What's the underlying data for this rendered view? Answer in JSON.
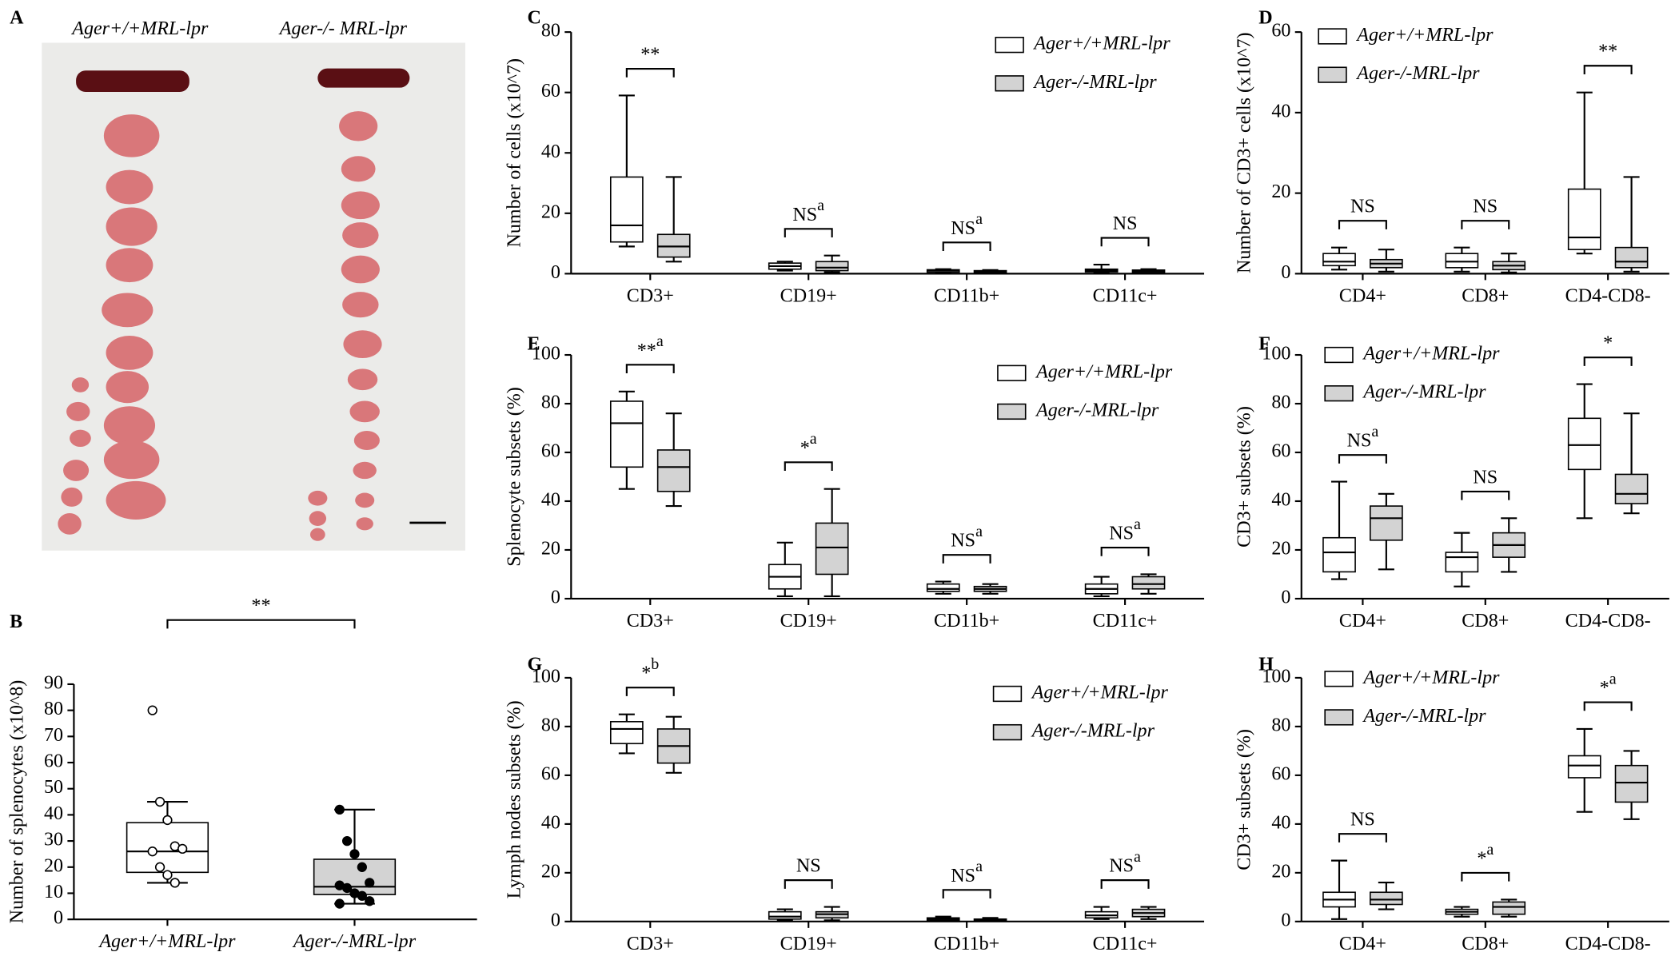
{
  "panel_a": {
    "label": "A",
    "left_title": "Ager+/+MRL-lpr",
    "right_title": "Ager-/- MRL-lpr"
  },
  "chart_data": [
    {
      "type": "box",
      "panel": "B",
      "ylabel": "Number of splenocytes (x10^8)",
      "ylim": [
        0,
        90
      ],
      "yticks": [
        0,
        10,
        20,
        30,
        40,
        50,
        60,
        70,
        80,
        90
      ],
      "categories": [
        "Ager+/+MRL-lpr",
        "Ager-/-MRL-lpr"
      ],
      "colors": [
        "#ffffff",
        "#d3d3d3"
      ],
      "boxes": [
        {
          "min": 14,
          "q1": 18,
          "median": 26,
          "q3": 37,
          "max": 45
        },
        {
          "min": 6,
          "q1": 9.5,
          "median": 12.5,
          "q3": 23,
          "max": 42
        }
      ],
      "points": [
        [
          80,
          45,
          38,
          28,
          27,
          26,
          20,
          17,
          14
        ],
        [
          42,
          30,
          25,
          20,
          14,
          13,
          12,
          10,
          9,
          7,
          6
        ]
      ],
      "significance": [
        {
          "text": "**"
        }
      ]
    },
    {
      "type": "box",
      "panel": "C",
      "ylabel": "Number of cells (x10^7)",
      "ylim": [
        0,
        80
      ],
      "yticks": [
        0,
        20,
        40,
        60,
        80
      ],
      "categories": [
        "CD3+",
        "CD19+",
        "CD11b+",
        "CD11c+"
      ],
      "series": [
        {
          "name": "Ager+/+MRL-lpr",
          "color": "#ffffff",
          "boxes": [
            {
              "min": 9,
              "q1": 10.5,
              "median": 16,
              "q3": 32,
              "max": 59
            },
            {
              "min": 1,
              "q1": 1.5,
              "median": 2.5,
              "q3": 3.5,
              "max": 4
            },
            {
              "min": 0.2,
              "q1": 0.5,
              "median": 1,
              "q3": 1.3,
              "max": 1.5
            },
            {
              "min": 0.3,
              "q1": 0.6,
              "median": 1,
              "q3": 1.5,
              "max": 3
            }
          ]
        },
        {
          "name": "Ager-/-MRL-lpr",
          "color": "#d3d3d3",
          "boxes": [
            {
              "min": 4,
              "q1": 5.5,
              "median": 9,
              "q3": 13,
              "max": 32
            },
            {
              "min": 0.5,
              "q1": 1,
              "median": 2,
              "q3": 4,
              "max": 6
            },
            {
              "min": 0.1,
              "q1": 0.3,
              "median": 0.6,
              "q3": 1,
              "max": 1.2
            },
            {
              "min": 0.2,
              "q1": 0.4,
              "median": 0.8,
              "q3": 1.2,
              "max": 1.5
            }
          ]
        }
      ],
      "significance": [
        {
          "text": "**"
        },
        {
          "text": "NS",
          "sup": "a"
        },
        {
          "text": "NS",
          "sup": "a"
        },
        {
          "text": "NS"
        }
      ]
    },
    {
      "type": "box",
      "panel": "D",
      "ylabel": "Number of CD3+ cells (x10^7)",
      "ylim": [
        0,
        60
      ],
      "yticks": [
        0,
        20,
        40,
        60
      ],
      "categories": [
        "CD4+",
        "CD8+",
        "CD4-CD8-"
      ],
      "series": [
        {
          "name": "Ager+/+MRL-lpr",
          "color": "#ffffff",
          "boxes": [
            {
              "min": 1,
              "q1": 2,
              "median": 3,
              "q3": 5,
              "max": 6.5
            },
            {
              "min": 0.5,
              "q1": 1.5,
              "median": 3,
              "q3": 5,
              "max": 6.5
            },
            {
              "min": 5,
              "q1": 6,
              "median": 9,
              "q3": 21,
              "max": 45
            }
          ]
        },
        {
          "name": "Ager-/-MRL-lpr",
          "color": "#d3d3d3",
          "boxes": [
            {
              "min": 0.5,
              "q1": 1.5,
              "median": 2.5,
              "q3": 3.5,
              "max": 6
            },
            {
              "min": 0.3,
              "q1": 1,
              "median": 2,
              "q3": 3,
              "max": 5
            },
            {
              "min": 0.5,
              "q1": 1.5,
              "median": 3,
              "q3": 6.5,
              "max": 24
            }
          ]
        }
      ],
      "significance": [
        {
          "text": "NS"
        },
        {
          "text": "NS"
        },
        {
          "text": "**"
        }
      ]
    },
    {
      "type": "box",
      "panel": "E",
      "ylabel": "Splenocyte subsets (%)",
      "ylim": [
        0,
        100
      ],
      "yticks": [
        0,
        20,
        40,
        60,
        80,
        100
      ],
      "categories": [
        "CD3+",
        "CD19+",
        "CD11b+",
        "CD11c+"
      ],
      "series": [
        {
          "name": "Ager+/+MRL-lpr",
          "color": "#ffffff",
          "boxes": [
            {
              "min": 45,
              "q1": 54,
              "median": 72,
              "q3": 81,
              "max": 85
            },
            {
              "min": 1,
              "q1": 4,
              "median": 9,
              "q3": 14,
              "max": 23
            },
            {
              "min": 2,
              "q1": 3,
              "median": 4,
              "q3": 6,
              "max": 7
            },
            {
              "min": 1,
              "q1": 2,
              "median": 4,
              "q3": 6,
              "max": 9
            }
          ]
        },
        {
          "name": "Ager-/-MRL-lpr",
          "color": "#d3d3d3",
          "boxes": [
            {
              "min": 38,
              "q1": 44,
              "median": 54,
              "q3": 61,
              "max": 76
            },
            {
              "min": 1,
              "q1": 10,
              "median": 21,
              "q3": 31,
              "max": 45
            },
            {
              "min": 2,
              "q1": 3,
              "median": 4,
              "q3": 5,
              "max": 6
            },
            {
              "min": 2,
              "q1": 4,
              "median": 6,
              "q3": 9,
              "max": 10
            }
          ]
        }
      ],
      "significance": [
        {
          "text": "**",
          "sup": "a"
        },
        {
          "text": "*",
          "sup": "a"
        },
        {
          "text": "NS",
          "sup": "a"
        },
        {
          "text": "NS",
          "sup": "a"
        }
      ]
    },
    {
      "type": "box",
      "panel": "F",
      "ylabel": "CD3+ subsets (%)",
      "ylim": [
        0,
        100
      ],
      "yticks": [
        0,
        20,
        40,
        60,
        80,
        100
      ],
      "categories": [
        "CD4+",
        "CD8+",
        "CD4-CD8-"
      ],
      "series": [
        {
          "name": "Ager+/+MRL-lpr",
          "color": "#ffffff",
          "boxes": [
            {
              "min": 8,
              "q1": 11,
              "median": 19,
              "q3": 25,
              "max": 48
            },
            {
              "min": 5,
              "q1": 11,
              "median": 17,
              "q3": 19,
              "max": 27
            },
            {
              "min": 33,
              "q1": 53,
              "median": 63,
              "q3": 74,
              "max": 88
            }
          ]
        },
        {
          "name": "Ager-/-MRL-lpr",
          "color": "#d3d3d3",
          "boxes": [
            {
              "min": 12,
              "q1": 24,
              "median": 33,
              "q3": 38,
              "max": 43
            },
            {
              "min": 11,
              "q1": 17,
              "median": 22,
              "q3": 27,
              "max": 33
            },
            {
              "min": 35,
              "q1": 39,
              "median": 43,
              "q3": 51,
              "max": 76
            }
          ]
        }
      ],
      "significance": [
        {
          "text": "NS",
          "sup": "a"
        },
        {
          "text": "NS"
        },
        {
          "text": "*"
        }
      ]
    },
    {
      "type": "box",
      "panel": "G",
      "ylabel": "Lymph nodes subsets (%)",
      "ylim": [
        0,
        100
      ],
      "yticks": [
        0,
        20,
        40,
        60,
        80,
        100
      ],
      "categories": [
        "CD3+",
        "CD19+",
        "CD11b+",
        "CD11c+"
      ],
      "series": [
        {
          "name": "Ager+/+MRL-lpr",
          "color": "#ffffff",
          "boxes": [
            {
              "min": 69,
              "q1": 73,
              "median": 79,
              "q3": 82,
              "max": 85
            },
            {
              "min": 0.5,
              "q1": 1,
              "median": 2,
              "q3": 4,
              "max": 5
            },
            {
              "min": 0.2,
              "q1": 0.5,
              "median": 1,
              "q3": 1.5,
              "max": 2
            },
            {
              "min": 1,
              "q1": 1.5,
              "median": 2.5,
              "q3": 4,
              "max": 6
            }
          ]
        },
        {
          "name": "Ager-/-MRL-lpr",
          "color": "#d3d3d3",
          "boxes": [
            {
              "min": 61,
              "q1": 65,
              "median": 72,
              "q3": 79,
              "max": 84
            },
            {
              "min": 0.5,
              "q1": 1.5,
              "median": 3,
              "q3": 4,
              "max": 6
            },
            {
              "min": 0.2,
              "q1": 0.4,
              "median": 0.8,
              "q3": 1,
              "max": 1.5
            },
            {
              "min": 1,
              "q1": 2,
              "median": 3.5,
              "q3": 5,
              "max": 6
            }
          ]
        }
      ],
      "significance": [
        {
          "text": "*",
          "sup": "b"
        },
        {
          "text": "NS"
        },
        {
          "text": "NS",
          "sup": "a"
        },
        {
          "text": "NS",
          "sup": "a"
        }
      ]
    },
    {
      "type": "box",
      "panel": "H",
      "ylabel": "CD3+ subsets (%)",
      "ylim": [
        0,
        100
      ],
      "yticks": [
        0,
        20,
        40,
        60,
        80,
        100
      ],
      "categories": [
        "CD4+",
        "CD8+",
        "CD4-CD8-"
      ],
      "series": [
        {
          "name": "Ager+/+MRL-lpr",
          "color": "#ffffff",
          "boxes": [
            {
              "min": 1,
              "q1": 6,
              "median": 9,
              "q3": 12,
              "max": 25
            },
            {
              "min": 2,
              "q1": 3,
              "median": 4,
              "q3": 5,
              "max": 6
            },
            {
              "min": 45,
              "q1": 59,
              "median": 64,
              "q3": 68,
              "max": 79
            }
          ]
        },
        {
          "name": "Ager-/-MRL-lpr",
          "color": "#d3d3d3",
          "boxes": [
            {
              "min": 5,
              "q1": 7,
              "median": 9,
              "q3": 12,
              "max": 16
            },
            {
              "min": 2,
              "q1": 3,
              "median": 6,
              "q3": 8,
              "max": 9
            },
            {
              "min": 42,
              "q1": 49,
              "median": 57,
              "q3": 64,
              "max": 70
            }
          ]
        }
      ],
      "significance": [
        {
          "text": "NS"
        },
        {
          "text": "*",
          "sup": "a"
        },
        {
          "text": "*",
          "sup": "a"
        }
      ]
    }
  ]
}
